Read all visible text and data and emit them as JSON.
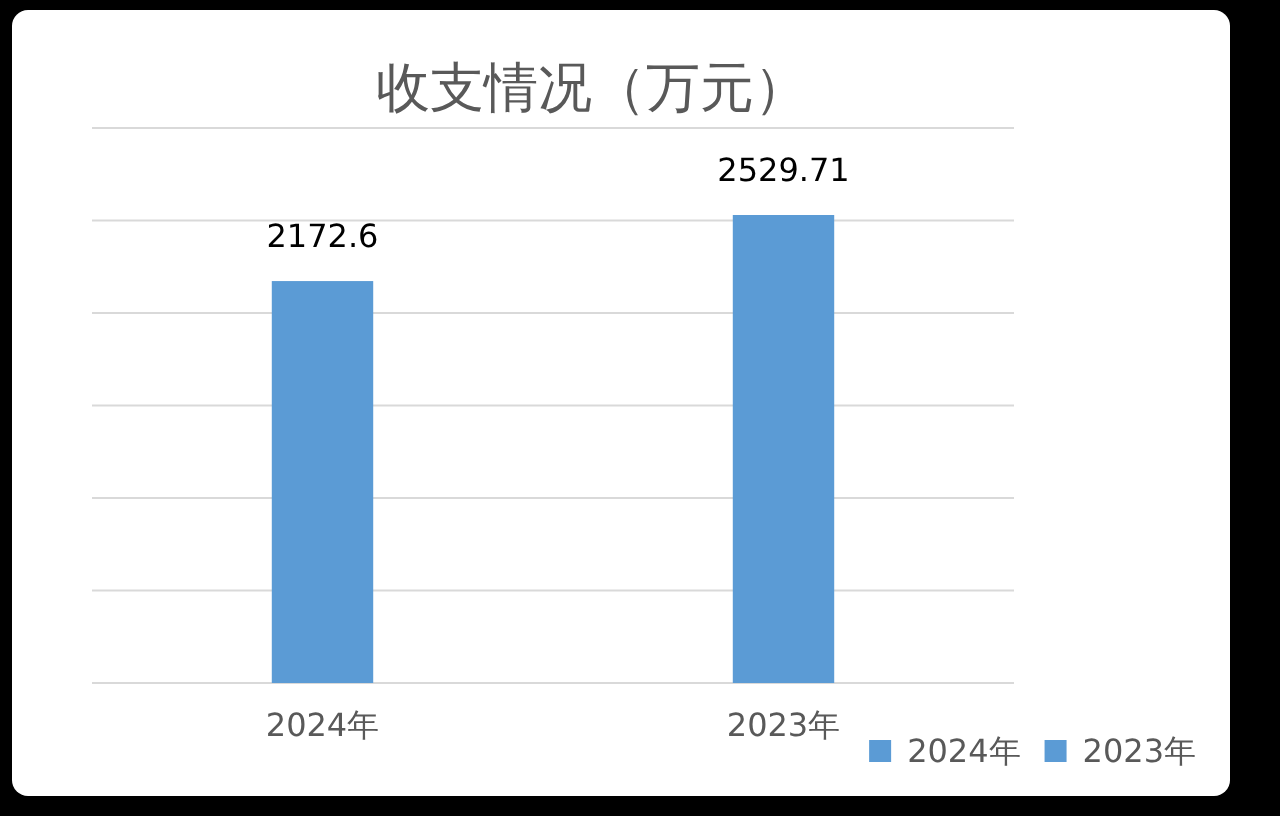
{
  "chart_data": {
    "type": "bar",
    "title": "收支情况（万元）",
    "categories": [
      "2024年",
      "2023年"
    ],
    "series": [
      {
        "name": "2024年",
        "color": "#5b9bd5",
        "values": [
          2172.6,
          null
        ]
      },
      {
        "name": "2023年",
        "color": "#5b9bd5",
        "values": [
          null,
          2529.71
        ]
      }
    ],
    "stacked": true,
    "data_labels": true,
    "grid": "y",
    "legend": "bottom right",
    "tick_labels": "x"
  }
}
